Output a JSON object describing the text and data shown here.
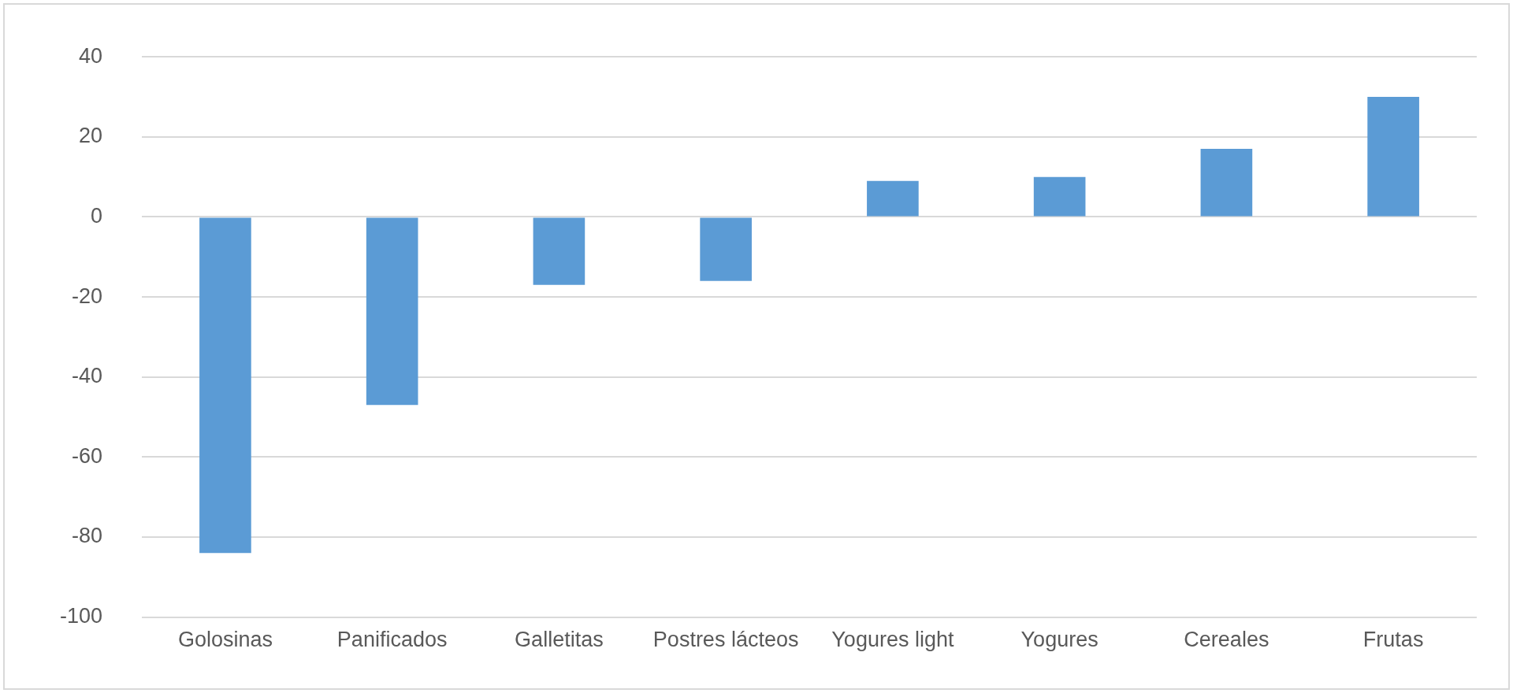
{
  "chart_data": {
    "type": "bar",
    "categories": [
      "Golosinas",
      "Panificados",
      "Galletitas",
      "Postres lácteos",
      "Yogures light",
      "Yogures",
      "Cereales",
      "Frutas"
    ],
    "values": [
      -84,
      -47,
      -17,
      -16,
      9,
      10,
      17,
      30
    ],
    "color": "#5b9bd5",
    "ylim": [
      -100,
      40
    ],
    "yticks": [
      -100,
      -80,
      -60,
      -40,
      -20,
      0,
      20,
      40
    ],
    "grid": "y"
  }
}
